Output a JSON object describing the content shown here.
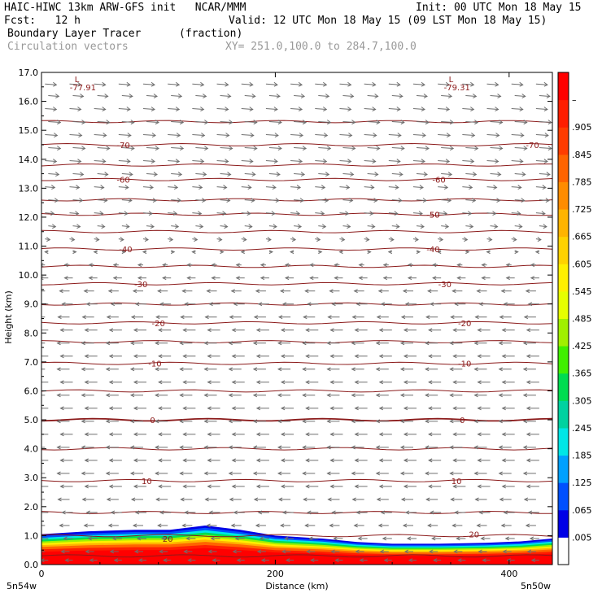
{
  "header": {
    "line1_left": "HAIC-HIWC 13km ARW-GFS init   NCAR/MMM",
    "line1_right": "Init: 00 UTC Mon 18 May 15",
    "line2_left": "Fcst:   12 h",
    "line2_right": "Valid: 12 UTC Mon 18 May 15 (09 LST Mon 18 May 15)",
    "line3_left": "Boundary Layer Tracer",
    "line3_mid": "(fraction)",
    "line4_left": "Circulation vectors",
    "line4_mid": "XY= 251.0,100.0 to 284.7,100.0"
  },
  "chart_data": {
    "type": "heatmap",
    "xlabel": "Distance (km)",
    "ylabel": "Height (km)",
    "xlim": [
      0,
      437
    ],
    "ylim": [
      0,
      17
    ],
    "x_ticks": [
      {
        "value": 0,
        "label": "0"
      },
      {
        "value": 200,
        "label": "200"
      },
      {
        "value": 400,
        "label": "400"
      }
    ],
    "y_ticks": [
      {
        "value": 0,
        "label": "0.0"
      },
      {
        "value": 1,
        "label": "1.0"
      },
      {
        "value": 2,
        "label": "2.0"
      },
      {
        "value": 3,
        "label": "3.0"
      },
      {
        "value": 4,
        "label": "4.0"
      },
      {
        "value": 5,
        "label": "5.0"
      },
      {
        "value": 6,
        "label": "6.0"
      },
      {
        "value": 7,
        "label": "7.0"
      },
      {
        "value": 8,
        "label": "8.0"
      },
      {
        "value": 9,
        "label": "9.0"
      },
      {
        "value": 10,
        "label": "10.0"
      },
      {
        "value": 11,
        "label": "11.0"
      },
      {
        "value": 12,
        "label": "12.0"
      },
      {
        "value": 13,
        "label": "13.0"
      },
      {
        "value": 14,
        "label": "14.0"
      },
      {
        "value": 15,
        "label": "15.0"
      },
      {
        "value": 16,
        "label": "16.0"
      },
      {
        "value": 17,
        "label": "17.0"
      }
    ],
    "corner_labels": {
      "left": "5n54w",
      "right": "5n50w"
    },
    "lows": [
      {
        "x": 20,
        "label": "L",
        "value": "-77.91"
      },
      {
        "x": 340,
        "label": "L",
        "value": "-79.31"
      }
    ],
    "temperature_contours": [
      {
        "height": 0.3
      },
      {
        "height": 1.0
      },
      {
        "height": 1.8
      },
      {
        "height": 2.9,
        "label": "10",
        "label_x": [
          90,
          355
        ]
      },
      {
        "height": 4.0
      },
      {
        "height": 5.0,
        "label": "0",
        "label_x": [
          95,
          360
        ]
      },
      {
        "height": 6.0
      },
      {
        "height": 6.95,
        "label": "-10",
        "label_x": [
          97,
          362
        ]
      },
      {
        "height": 7.7
      },
      {
        "height": 8.35,
        "label": "-20",
        "label_x": [
          100,
          362
        ]
      },
      {
        "height": 9.0
      },
      {
        "height": 9.7,
        "label": "-30",
        "label_x": [
          85,
          345
        ]
      },
      {
        "height": 10.3
      },
      {
        "height": 10.9,
        "label": "-40",
        "label_x": [
          72,
          335
        ]
      },
      {
        "height": 11.5
      },
      {
        "height": 12.1,
        "label": "-50",
        "label_x": [
          335,
          335
        ]
      },
      {
        "height": 12.6
      },
      {
        "height": 13.3,
        "label": "-60",
        "label_x": [
          70,
          340
        ]
      },
      {
        "height": 13.8
      },
      {
        "height": 14.5,
        "label": "-70",
        "label_x": [
          70,
          420
        ]
      },
      {
        "height": 15.3
      }
    ],
    "contour_20_label": {
      "x": 108,
      "height": 0.9,
      "label": "20",
      "x2": 370,
      "height2": 1.05
    },
    "tracer_top_profile": [
      {
        "x": 0,
        "top": 1.05
      },
      {
        "x": 40,
        "top": 1.15
      },
      {
        "x": 80,
        "top": 1.2
      },
      {
        "x": 110,
        "top": 1.2
      },
      {
        "x": 140,
        "top": 1.35
      },
      {
        "x": 170,
        "top": 1.2
      },
      {
        "x": 200,
        "top": 1.0
      },
      {
        "x": 240,
        "top": 0.9
      },
      {
        "x": 270,
        "top": 0.78
      },
      {
        "x": 300,
        "top": 0.72
      },
      {
        "x": 340,
        "top": 0.72
      },
      {
        "x": 380,
        "top": 0.75
      },
      {
        "x": 410,
        "top": 0.8
      },
      {
        "x": 437,
        "top": 0.9
      }
    ],
    "colorbar": {
      "labels": [
        ".005",
        ".065",
        ".125",
        ".185",
        ".245",
        ".305",
        ".365",
        ".425",
        ".485",
        ".545",
        ".605",
        ".665",
        ".725",
        ".785",
        ".845",
        ".905",
        "–"
      ],
      "colors": [
        "#ffffff",
        "#0000e6",
        "#0050ff",
        "#00a0ff",
        "#00e6e6",
        "#00d2a0",
        "#00dc50",
        "#40f000",
        "#a0f000",
        "#e6ff00",
        "#fff000",
        "#ffd200",
        "#ffb400",
        "#ff8c00",
        "#ff6400",
        "#ff3c00",
        "#ff1e00",
        "#ff0000"
      ]
    },
    "vector_rows": [
      {
        "height": 16.6,
        "dir": 1,
        "len": 14
      },
      {
        "height": 16.2,
        "dir": 1,
        "len": 13
      },
      {
        "height": 15.75,
        "dir": 1,
        "len": 14
      },
      {
        "height": 15.3,
        "dir": 1,
        "len": 15
      },
      {
        "height": 14.85,
        "dir": 1,
        "len": 15
      },
      {
        "height": 14.4,
        "dir": 1,
        "len": 15
      },
      {
        "height": 13.95,
        "dir": 1,
        "len": 14
      },
      {
        "height": 13.5,
        "dir": 1,
        "len": 13
      },
      {
        "height": 13.05,
        "dir": 1,
        "len": 12
      },
      {
        "height": 12.6,
        "dir": 1,
        "len": 12
      },
      {
        "height": 12.15,
        "dir": 1,
        "len": 11
      },
      {
        "height": 11.7,
        "dir": 1,
        "len": 9
      },
      {
        "height": 11.25,
        "dir": 1,
        "len": 6
      },
      {
        "height": 10.8,
        "dir": 0,
        "len": 4
      },
      {
        "height": 10.35,
        "dir": -1,
        "len": 6
      },
      {
        "height": 9.9,
        "dir": -1,
        "len": 10
      },
      {
        "height": 9.45,
        "dir": -1,
        "len": 12
      },
      {
        "height": 9.0,
        "dir": -1,
        "len": 13
      },
      {
        "height": 8.55,
        "dir": -1,
        "len": 14
      },
      {
        "height": 8.1,
        "dir": -1,
        "len": 15
      },
      {
        "height": 7.65,
        "dir": -1,
        "len": 15
      },
      {
        "height": 7.2,
        "dir": -1,
        "len": 15
      },
      {
        "height": 6.75,
        "dir": -1,
        "len": 15
      },
      {
        "height": 6.3,
        "dir": -1,
        "len": 15
      },
      {
        "height": 5.85,
        "dir": -1,
        "len": 15
      },
      {
        "height": 5.4,
        "dir": -1,
        "len": 15
      },
      {
        "height": 4.95,
        "dir": -1,
        "len": 15
      },
      {
        "height": 4.5,
        "dir": -1,
        "len": 15
      },
      {
        "height": 4.05,
        "dir": -1,
        "len": 15
      },
      {
        "height": 3.6,
        "dir": -1,
        "len": 15
      },
      {
        "height": 3.15,
        "dir": -1,
        "len": 15
      },
      {
        "height": 2.7,
        "dir": -1,
        "len": 15
      },
      {
        "height": 2.25,
        "dir": -1,
        "len": 14
      },
      {
        "height": 1.8,
        "dir": -1,
        "len": 13
      },
      {
        "height": 1.35,
        "dir": -1,
        "len": 12
      },
      {
        "height": 0.9,
        "dir": -1,
        "len": 11
      },
      {
        "height": 0.45,
        "dir": -1,
        "len": 10
      },
      {
        "height": 0.15,
        "dir": -1,
        "len": 9
      }
    ],
    "vector_columns_km": [
      3,
      24,
      45,
      66,
      87,
      108,
      129,
      150,
      171,
      192,
      213,
      234,
      255,
      276,
      297,
      318,
      339,
      360,
      381,
      402,
      423
    ]
  }
}
